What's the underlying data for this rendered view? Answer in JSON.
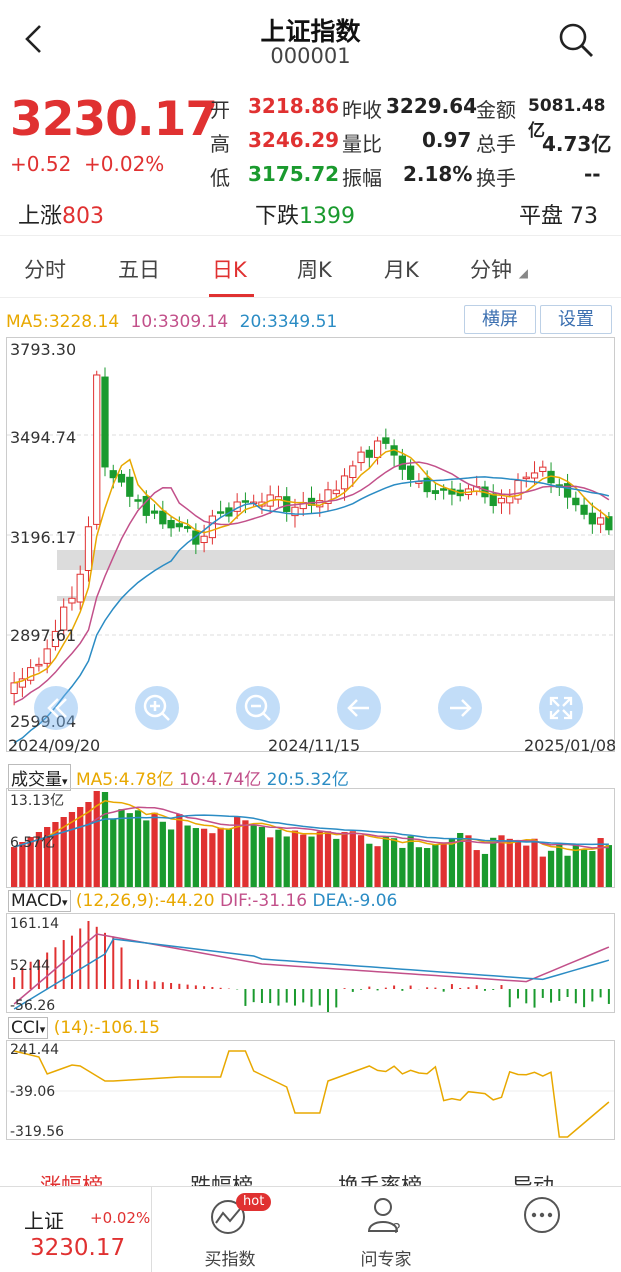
{
  "header": {
    "title": "上证指数",
    "code": "000001"
  },
  "quote": {
    "price": "3230.17",
    "change": "+0.52",
    "change_pct": "+0.02%",
    "rows": [
      {
        "l1": "开",
        "v1": "3218.86",
        "l2": "昨收",
        "v2": "3229.64",
        "l3": "金额",
        "v3": "5081.48亿"
      },
      {
        "l1": "高",
        "v1": "3246.29",
        "l2": "量比",
        "v2": "0.97",
        "l3": "总手",
        "v3": "4.73亿"
      },
      {
        "l1": "低",
        "v1": "3175.72",
        "l2": "振幅",
        "v2": "2.18%",
        "l3": "换手",
        "v3": "--"
      }
    ]
  },
  "breadth": {
    "up_label": "上涨",
    "up": "803",
    "down_label": "下跌",
    "down": "1399",
    "flat_label": "平盘",
    "flat": "73"
  },
  "tabs": [
    "分时",
    "五日",
    "日K",
    "周K",
    "月K",
    "分钟"
  ],
  "ma_legend": {
    "ma5": "MA5:3228.14",
    "ma10": "10:3309.14",
    "ma20": "20:3349.51"
  },
  "buttons": {
    "landscape": "横屏",
    "settings": "设置"
  },
  "price_axis": [
    "3793.30",
    "3494.74",
    "3196.17",
    "2897.61",
    "2599.04"
  ],
  "date_axis": [
    "2024/09/20",
    "2024/11/15",
    "2025/01/08"
  ],
  "volume": {
    "label": "成交量",
    "ma5": "MA5:4.78亿",
    "ma10": "10:4.74亿",
    "ma20": "20:5.32亿",
    "axis": [
      "13.13亿",
      "6.57亿"
    ]
  },
  "macd": {
    "label": "MACD",
    "params": "(12,26,9):-44.20",
    "dif": "DIF:-31.16",
    "dea": "DEA:-9.06",
    "axis": [
      "161.14",
      "52.44",
      "-56.26"
    ]
  },
  "cci": {
    "label": "CCI",
    "params": "(14):-106.15",
    "axis": [
      "241.44",
      "-39.06",
      "-319.56"
    ]
  },
  "bottom_tabs": [
    "涨幅榜",
    "跌幅榜",
    "换手率榜",
    "异动"
  ],
  "bottom": {
    "mini_name": "上证",
    "mini_pct": "+0.02%",
    "mini_price": "3230.17",
    "buy_index": "买指数",
    "hot_badge": "hot",
    "ask_expert": "问专家"
  },
  "colors": {
    "up": "#e03131",
    "down": "#1a9a2e",
    "ma5": "#e8a800",
    "ma10": "#c2508a",
    "ma20": "#2b8cc4"
  }
}
